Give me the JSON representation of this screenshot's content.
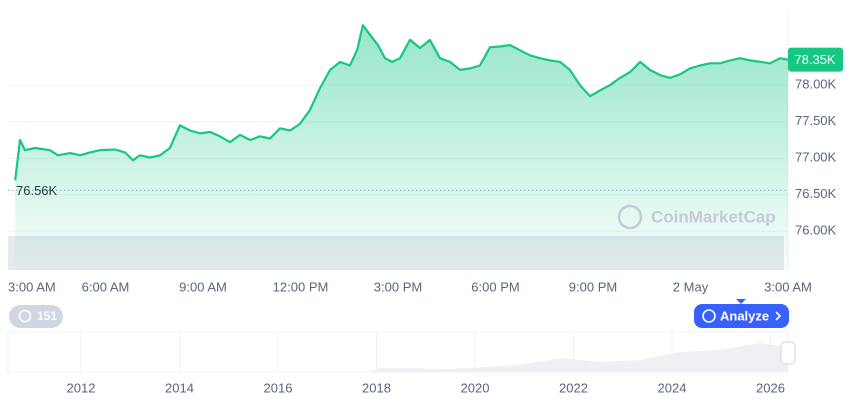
{
  "chart_data": {
    "type": "area",
    "color": "#16c784",
    "x": [
      0.22,
      0.37,
      0.52,
      0.83,
      1.29,
      1.54,
      1.91,
      2.22,
      2.52,
      2.83,
      3.29,
      3.6,
      3.85,
      4.06,
      4.37,
      4.68,
      4.98,
      5.29,
      5.6,
      5.91,
      6.22,
      6.52,
      6.83,
      7.14,
      7.45,
      7.75,
      8.06,
      8.37,
      8.68,
      8.98,
      9.29,
      9.6,
      9.91,
      10.22,
      10.52,
      10.74,
      10.92,
      11.14,
      11.38,
      11.6,
      11.82,
      12.06,
      12.37,
      12.68,
      12.98,
      13.29,
      13.6,
      13.91,
      14.22,
      14.52,
      14.83,
      15.14,
      15.45,
      15.75,
      16.06,
      16.37,
      16.68,
      16.98,
      17.29,
      17.6,
      17.91,
      18.22,
      18.52,
      18.83,
      19.14,
      19.45,
      19.75,
      20.06,
      20.37,
      20.68,
      20.98,
      21.29,
      21.6,
      21.91,
      22.22,
      22.52,
      22.83,
      23.14,
      23.45,
      23.75,
      24
    ],
    "values": [
      76700,
      77250,
      77110,
      77140,
      77110,
      77040,
      77070,
      77040,
      77080,
      77110,
      77120,
      77080,
      76970,
      77040,
      77010,
      77040,
      77140,
      77450,
      77380,
      77340,
      77360,
      77300,
      77220,
      77320,
      77250,
      77300,
      77270,
      77410,
      77380,
      77470,
      77660,
      77960,
      78210,
      78320,
      78270,
      78480,
      78820,
      78690,
      78550,
      78370,
      78320,
      78370,
      78620,
      78510,
      78620,
      78370,
      78320,
      78210,
      78230,
      78270,
      78520,
      78530,
      78550,
      78480,
      78410,
      78370,
      78340,
      78320,
      78210,
      78000,
      77850,
      77930,
      78000,
      78100,
      78180,
      78320,
      78210,
      78140,
      78100,
      78150,
      78230,
      78270,
      78300,
      78300,
      78340,
      78370,
      78340,
      78320,
      78300,
      78370,
      78350
    ],
    "xlim": [
      0,
      24
    ],
    "xticks": [
      {
        "value": 0,
        "label": "3:00 AM"
      },
      {
        "value": 3,
        "label": "6:00 AM"
      },
      {
        "value": 6,
        "label": "9:00 AM"
      },
      {
        "value": 9,
        "label": "12:00 PM"
      },
      {
        "value": 12,
        "label": "3:00 PM"
      },
      {
        "value": 15,
        "label": "6:00 PM"
      },
      {
        "value": 18,
        "label": "9:00 PM"
      },
      {
        "value": 21,
        "label": "2 May"
      },
      {
        "value": 24,
        "label": "3:00 AM"
      }
    ],
    "ylim": [
      75470,
      79030
    ],
    "yticks": [
      {
        "value": 76000,
        "label": "76.00K"
      },
      {
        "value": 76500,
        "label": "76.50K"
      },
      {
        "value": 77000,
        "label": "77.00K"
      },
      {
        "value": 77500,
        "label": "77.50K"
      },
      {
        "value": 78000,
        "label": "78.00K"
      }
    ],
    "grid": true,
    "reference_line": {
      "value": 76560,
      "label": "76.56K"
    },
    "last_price": {
      "value": 78350,
      "label": "78.35K"
    },
    "watermark": "CoinMarketCap",
    "history_count": "151",
    "analyze_button": "Analyze",
    "navigator_years": [
      "2012",
      "2014",
      "2016",
      "2018",
      "2020",
      "2022",
      "2024",
      "2026"
    ]
  }
}
